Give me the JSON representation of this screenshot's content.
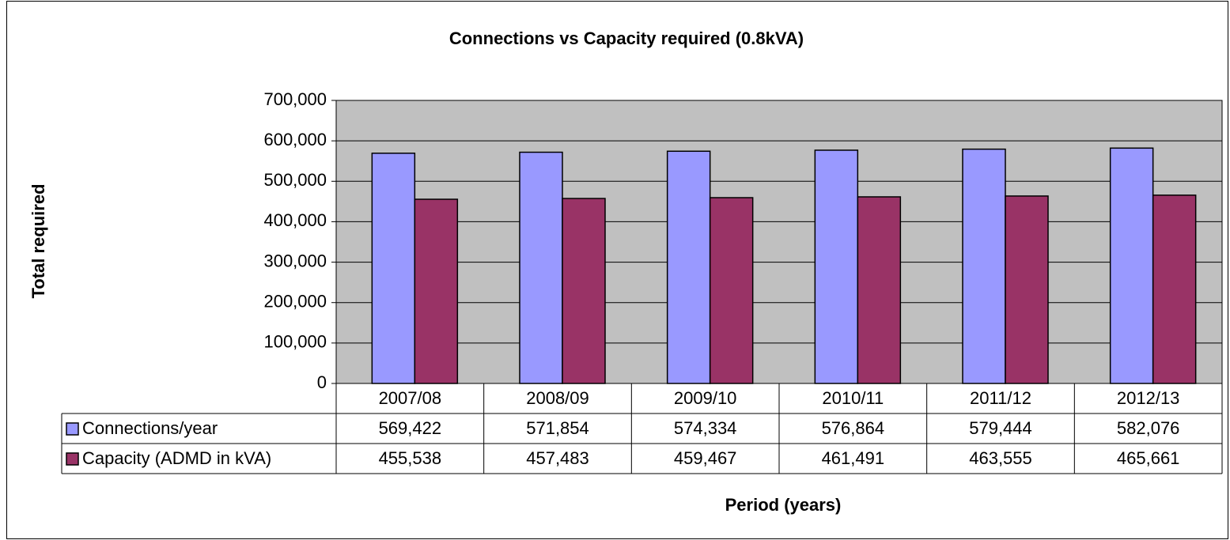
{
  "chart_data": {
    "type": "bar",
    "title": "Connections vs Capacity required (0.8kVA)",
    "y_label": "Total required",
    "x_label": "Period (years)",
    "categories": [
      "2007/08",
      "2008/09",
      "2009/10",
      "2010/11",
      "2011/12",
      "2012/13"
    ],
    "series": [
      {
        "name": "Connections/year",
        "color": "#9999ff",
        "values": [
          569422,
          571854,
          574334,
          576864,
          579444,
          582076
        ],
        "value_labels": [
          "569,422",
          "571,854",
          "574,334",
          "576,864",
          "579,444",
          "582,076"
        ]
      },
      {
        "name": "Capacity (ADMD in kVA)",
        "color": "#993366",
        "values": [
          455538,
          457483,
          459467,
          461491,
          463555,
          465661
        ],
        "value_labels": [
          "455,538",
          "457,483",
          "459,467",
          "461,491",
          "463,555",
          "465,661"
        ]
      }
    ],
    "ylim": [
      0,
      700000
    ],
    "yticks": [
      0,
      {
        "value": 100000,
        "label": "100,000"
      },
      {
        "value": 200000,
        "label": "200,000"
      },
      {
        "value": 300000,
        "label": "300,000"
      },
      {
        "value": 400000,
        "label": "400,000"
      },
      {
        "value": 500000,
        "label": "500,000"
      },
      {
        "value": 600000,
        "label": "600,000"
      },
      {
        "value": 700000,
        "label": "700,000"
      }
    ],
    "grid": true,
    "plot_background": "#c0c0c0"
  }
}
